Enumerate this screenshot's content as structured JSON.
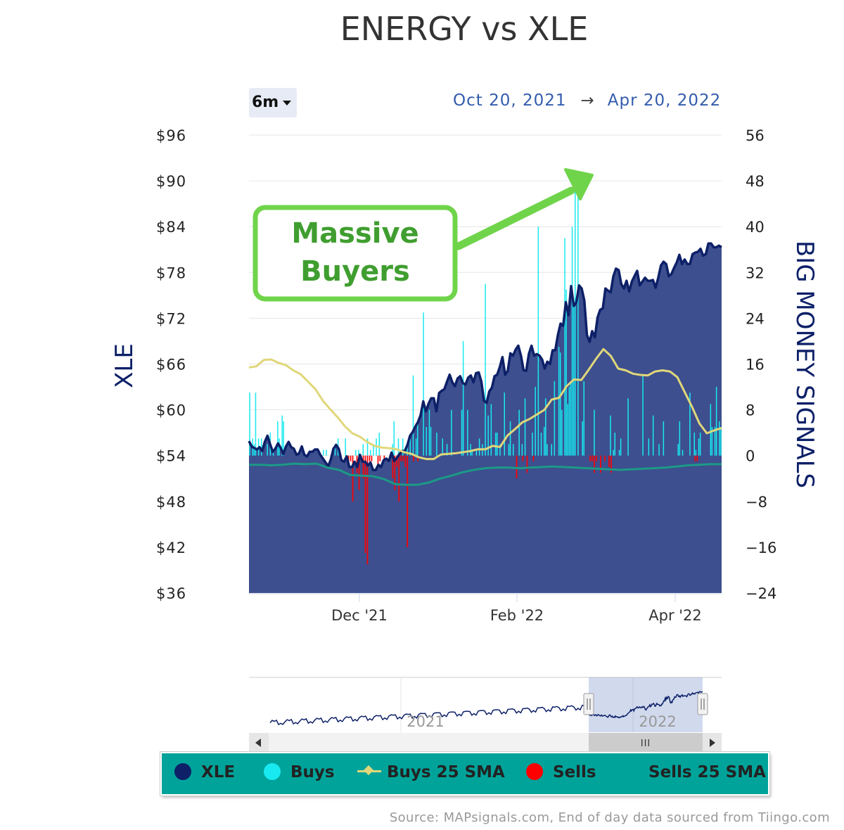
{
  "title": "ENERGY vs XLE",
  "range_selector": {
    "label": "6m"
  },
  "date_range": {
    "from": "Oct 20, 2021",
    "arrow": "→",
    "to": "Apr 20, 2022"
  },
  "annotation": {
    "line1": "Massive",
    "line2": "Buyers"
  },
  "source": "Source: MAPsignals.com, End of day data sourced from Tiingo.com",
  "colors": {
    "xle": "#0d2068",
    "xle_area": "#3d4f8e",
    "buys": "#18e9f0",
    "sells": "#ff0000",
    "buys_sma": "#e0d77a",
    "sells_sma": "#1c9a86",
    "annotation": "#70d44b",
    "legend_bg": "#00a39a"
  },
  "legend": [
    {
      "name": "XLE",
      "icon": "dot",
      "color": "#0d2068"
    },
    {
      "name": "Buys",
      "icon": "dot",
      "color": "#18e9f0"
    },
    {
      "name": "Buys 25 SMA",
      "icon": "line-diamond",
      "color": "#e0d77a"
    },
    {
      "name": "Sells",
      "icon": "dot",
      "color": "#ff0000"
    },
    {
      "name": "Sells 25 SMA",
      "icon": "none",
      "color": "#1c9a86"
    }
  ],
  "navigator": {
    "labels": [
      "2021",
      "2022"
    ],
    "grip": "III"
  },
  "chart_data": {
    "type": "line",
    "x_start": "Oct 20, 2021",
    "x_end": "Apr 20, 2022",
    "x_ticks": [
      "Dec '21",
      "Feb '22",
      "Apr '22"
    ],
    "y_left": {
      "title": "XLE",
      "min": 36,
      "max": 96,
      "tick_labels": [
        "$96",
        "$90",
        "$84",
        "$78",
        "$72",
        "$66",
        "$60",
        "$54",
        "$48",
        "$42",
        "$36"
      ]
    },
    "y_right": {
      "title": "BIG MONEY SIGNALS",
      "min": -24,
      "max": 56,
      "tick_labels": [
        "56",
        "48",
        "40",
        "32",
        "24",
        "16",
        "8",
        "0",
        "−8",
        "−16",
        "−24"
      ]
    },
    "series": [
      {
        "name": "XLE",
        "type": "area",
        "values": [
          55.9,
          55.2,
          55.0,
          54.8,
          55.1,
          54.6,
          55.8,
          56.6,
          55.5,
          54.5,
          54.9,
          55.6,
          55.0,
          54.2,
          55.2,
          55.8,
          55.1,
          54.9,
          54.1,
          54.3,
          55.2,
          54.1,
          53.9,
          54.5,
          54.5,
          54.8,
          54.8,
          54.1,
          53.6,
          53.1,
          52.6,
          53.5,
          54.9,
          55.4,
          54.9,
          53.4,
          53.2,
          53.9,
          52.5,
          52.5,
          53.2,
          52.5,
          54.1,
          53.2,
          53.2,
          52.7,
          53.1,
          52.1,
          52.1,
          52.8,
          52.5,
          53.4,
          53.6,
          53.3,
          54.4,
          53.3,
          53.7,
          54.2,
          54.6,
          54.6,
          55.4,
          56.6,
          57.1,
          57.8,
          58.4,
          59.3,
          61.1,
          59.8,
          60.8,
          61.5,
          61.5,
          59.8,
          62.2,
          62.5,
          62.7,
          63.7,
          64.6,
          63.6,
          63.1,
          64.1,
          64.4,
          63.5,
          63.3,
          64.2,
          64.5,
          63.6,
          64.8,
          64.9,
          63.7,
          61.2,
          60.9,
          62.4,
          62.9,
          64.4,
          64.6,
          65.6,
          66.9,
          64.6,
          65.1,
          67.4,
          67.1,
          67.9,
          68.4,
          67.1,
          65.2,
          65.1,
          67.3,
          68.4,
          67.1,
          67.3,
          67.1,
          66.6,
          65.4,
          66.3,
          66.0,
          67.8,
          67.8,
          69.8,
          71.3,
          71.0,
          74.1,
          72.4,
          76.2,
          73.6,
          74.1,
          76.3,
          75.9,
          74.3,
          69.8,
          68.9,
          70.3,
          69.5,
          72.1,
          73.1,
          73.3,
          75.9,
          75.6,
          75.4,
          77.5,
          78.5,
          78.3,
          76.5,
          75.9,
          76.9,
          75.5,
          76.8,
          77.5,
          78.2,
          76.3,
          76.8,
          77.3,
          76.9,
          76.9,
          77.0,
          76.0,
          77.3,
          78.9,
          79.4,
          79.1,
          77.5,
          77.8,
          78.6,
          79.3,
          80.3,
          79.1,
          79.7,
          79.1,
          79.1,
          80.4,
          80.6,
          80.7,
          81.1,
          80.2,
          80.4,
          81.8,
          81.8,
          81.3,
          81.3,
          81.5,
          81.3
        ]
      },
      {
        "name": "Buys",
        "type": "column",
        "values": [
          11,
          0,
          3,
          2,
          11,
          0,
          3,
          0,
          3,
          0,
          0,
          0,
          2,
          0,
          4,
          0,
          1,
          0,
          0,
          6,
          3,
          0,
          7,
          6,
          0,
          0,
          0,
          0,
          0,
          0,
          0,
          0,
          0,
          0,
          0,
          0,
          0,
          0,
          0,
          0,
          0,
          0,
          0,
          0,
          0,
          0,
          0,
          0,
          0,
          0,
          1,
          0,
          1,
          0,
          0,
          0,
          1,
          0,
          2,
          0,
          3,
          0,
          0,
          0,
          0,
          3,
          0,
          0,
          0,
          0,
          0,
          0,
          1,
          0,
          1,
          0,
          0,
          2,
          0,
          0,
          3,
          0,
          1,
          0,
          2,
          0,
          3,
          0,
          4,
          0,
          0,
          0,
          0,
          0,
          0,
          0,
          0,
          2,
          6,
          0,
          0,
          3,
          0,
          0,
          3,
          0,
          0,
          2,
          0,
          3,
          0,
          14,
          0,
          3,
          6,
          0,
          0,
          0,
          25,
          0,
          5,
          0,
          8,
          5,
          0,
          0,
          0,
          4,
          0,
          0,
          0,
          3,
          0,
          0,
          2,
          0,
          0,
          8,
          0,
          0,
          0,
          0,
          0,
          0,
          8,
          20,
          0,
          0,
          8,
          0,
          2,
          1,
          0,
          0,
          1,
          0,
          3,
          0,
          2,
          0,
          30,
          0,
          7,
          0,
          9,
          0,
          0,
          4,
          4,
          0,
          2,
          0,
          0,
          11,
          0,
          0,
          2,
          6,
          0,
          2,
          0,
          0,
          0,
          8,
          0,
          2,
          0,
          10,
          0,
          0,
          0,
          0,
          4,
          0,
          12,
          0,
          40,
          0,
          4,
          0,
          5,
          10,
          2,
          0,
          0,
          2,
          0,
          13,
          0,
          0,
          19,
          18,
          8,
          0,
          38,
          29,
          9,
          12,
          13,
          40,
          26,
          48,
          0,
          47,
          0,
          0,
          6,
          13,
          0,
          0,
          0,
          0,
          0,
          0,
          8,
          0,
          0,
          0,
          0,
          0,
          0,
          0,
          0,
          0,
          0,
          7,
          0,
          1,
          4,
          0,
          0,
          1,
          3,
          0,
          0,
          0,
          0,
          10,
          0,
          0,
          0,
          0,
          0,
          0,
          0,
          0,
          0,
          14,
          0,
          0,
          0,
          3,
          0,
          0,
          7,
          0,
          0,
          0,
          2,
          0,
          0,
          6,
          0,
          0,
          0,
          0,
          0,
          0,
          0,
          0,
          0,
          2,
          6,
          0,
          1,
          0,
          0,
          0,
          0,
          11,
          0,
          0,
          4,
          1,
          0,
          3,
          4,
          0,
          0,
          0,
          0,
          0,
          0,
          9,
          5,
          0,
          5,
          12,
          0,
          6,
          5
        ]
      },
      {
        "name": "Sells",
        "type": "column",
        "values": [
          0,
          0,
          0,
          0,
          0,
          0,
          0,
          0,
          0,
          0,
          0,
          0,
          0,
          0,
          0,
          0,
          0,
          0,
          0,
          0,
          0,
          0,
          0,
          0,
          0,
          0,
          0,
          0,
          -1,
          -1,
          -8,
          0,
          -3,
          -6,
          -1,
          -4,
          -17,
          -19,
          -1,
          -1,
          0,
          0,
          -2,
          -1,
          0,
          -1,
          0,
          0,
          0,
          -4,
          -6,
          -2,
          -8,
          -1,
          -1,
          -2,
          -16,
          0,
          0,
          -1,
          0,
          -1,
          0,
          0,
          0,
          0,
          0,
          0,
          0,
          0,
          0,
          0,
          0,
          0,
          0,
          0,
          0,
          0,
          0,
          0,
          0,
          0,
          0,
          0,
          0,
          0,
          0,
          0,
          0,
          0,
          0,
          0,
          0,
          0,
          0,
          0,
          0,
          0,
          0,
          0,
          0,
          0,
          0,
          0,
          0,
          0,
          0,
          0,
          -4,
          0,
          0,
          -1,
          0,
          -3,
          0,
          0,
          -1,
          0,
          0,
          0,
          0,
          0,
          0,
          0,
          0,
          0,
          0,
          0,
          0,
          0,
          0,
          0,
          0,
          0,
          0,
          0,
          0,
          0,
          0,
          0,
          0,
          0,
          0,
          -1,
          -1,
          -3,
          -1,
          0,
          -3,
          0,
          -1,
          0,
          -2,
          -3,
          0,
          0,
          0,
          0,
          0,
          0,
          0,
          0,
          0,
          0,
          0,
          0,
          0,
          0,
          0,
          0,
          0,
          0,
          0,
          0,
          0,
          0,
          0,
          0,
          0,
          0,
          0,
          0,
          0,
          0,
          0,
          0,
          0,
          0,
          0,
          0,
          0,
          0,
          0,
          -1,
          -1,
          0,
          0,
          0,
          0,
          0,
          0,
          0,
          0,
          0,
          0,
          0,
          0
        ]
      },
      {
        "name": "Buys 25 SMA",
        "type": "line",
        "values": [
          15.4,
          15.6,
          16.7,
          16.8,
          16.2,
          15.8,
          14.9,
          14.2,
          12.9,
          11.6,
          9.6,
          8.1,
          6.7,
          5.1,
          3.9,
          3.3,
          2.4,
          1.7,
          1.4,
          1.3,
          1.1,
          0.6,
          0.3,
          -0.3,
          -0.6,
          -0.6,
          0.2,
          0.3,
          0.4,
          0.6,
          0.8,
          1.1,
          1.1,
          1.7,
          1.5,
          3.5,
          4.6,
          5.8,
          6.4,
          7.2,
          8.0,
          9.8,
          10.1,
          12.1,
          13.3,
          13.2,
          15.0,
          16.9,
          18.6,
          17.4,
          15.2,
          14.9,
          14.3,
          14.1,
          14.0,
          14.7,
          14.9,
          14.7,
          13.7,
          11.1,
          8.5,
          5.6,
          3.9,
          4.4,
          4.8
        ]
      },
      {
        "name": "Sells 25 SMA",
        "type": "line",
        "values": [
          -1.6,
          -1.6,
          -1.7,
          -1.6,
          -1.4,
          -1.5,
          -1.4,
          -2.1,
          -2.5,
          -3.4,
          -3.5,
          -3.6,
          -4.1,
          -5.0,
          -5.1,
          -5.1,
          -4.7,
          -4.0,
          -3.5,
          -2.9,
          -2.5,
          -2.2,
          -2.1,
          -2.1,
          -2.2,
          -2.1,
          -2.0,
          -1.9,
          -2.0,
          -2.1,
          -2.2,
          -2.3,
          -2.4,
          -2.5,
          -2.4,
          -2.3,
          -2.2,
          -2.1,
          -1.9,
          -1.7,
          -1.6,
          -1.5,
          -1.5
        ]
      }
    ],
    "grid": true
  }
}
